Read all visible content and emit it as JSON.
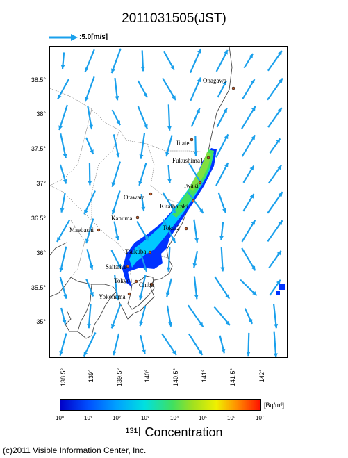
{
  "title": "2011031505(JST)",
  "scale_label": ":5.0[m/s]",
  "colors": {
    "arrow": "#1aa0ec",
    "coast": "#444444",
    "plume_low": "#0033ff",
    "plume_mid": "#00c8ff",
    "plume_high": "#40e060",
    "city_marker": "#c06030"
  },
  "lat_labels": [
    "38.5°",
    "38°",
    "37.5°",
    "37°",
    "36.5°",
    "36°",
    "35.5°",
    "35°"
  ],
  "lon_labels": [
    "138.5°",
    "139°",
    "139.5°",
    "140°",
    "140.5°",
    "141°",
    "141.5°",
    "142°"
  ],
  "cities": [
    "Onagawa",
    "Iitate",
    "Fukushima1",
    "Iwaki",
    "Otawara",
    "Kitaibaraki",
    "Kanuma",
    "Tokai2",
    "Maebashi",
    "Tsukuba",
    "Saitama",
    "Tokyo",
    "Chiba",
    "Yokohama"
  ],
  "colorbar": {
    "unit": "[Bq/m³]",
    "ticks": [
      "10⁰",
      "10¹",
      "10²",
      "10³",
      "10⁴",
      "10⁵",
      "10⁶",
      "10⁷"
    ],
    "title": "¹³¹I Concentration"
  },
  "copyright": "(c)2011 Visible Information Center, Inc."
}
